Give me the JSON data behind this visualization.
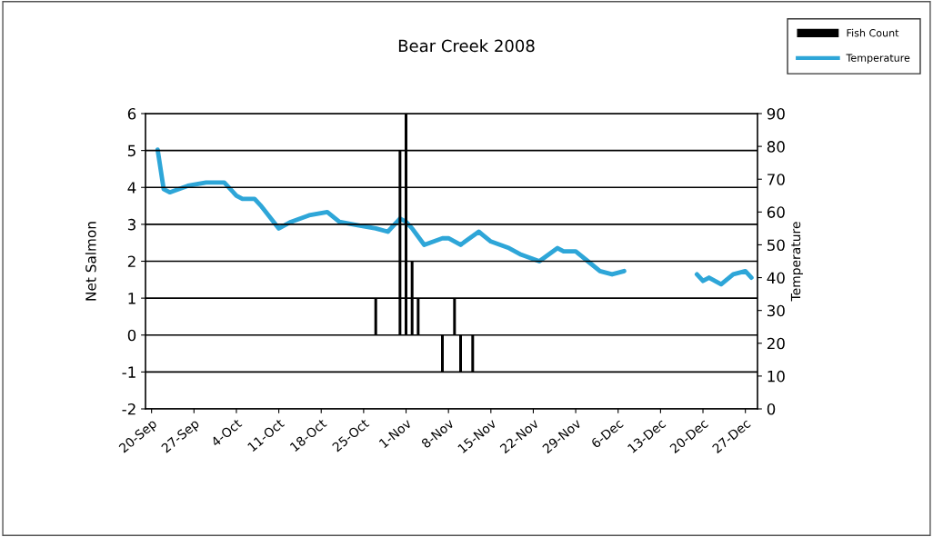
{
  "chart_data": {
    "type": "bar",
    "title": "Bear Creek 2008",
    "ylabel": "Net Salmon",
    "y2label": "Temperature",
    "xlim": [
      "2008-09-19",
      "2008-12-29"
    ],
    "xticks": [
      {
        "value": "2008-09-20",
        "label": "20-Sep"
      },
      {
        "value": "2008-09-27",
        "label": "27-Sep"
      },
      {
        "value": "2008-10-04",
        "label": "4-Oct"
      },
      {
        "value": "2008-10-11",
        "label": "11-Oct"
      },
      {
        "value": "2008-10-18",
        "label": "18-Oct"
      },
      {
        "value": "2008-10-25",
        "label": "25-Oct"
      },
      {
        "value": "2008-11-01",
        "label": "1-Nov"
      },
      {
        "value": "2008-11-08",
        "label": "8-Nov"
      },
      {
        "value": "2008-11-15",
        "label": "15-Nov"
      },
      {
        "value": "2008-11-22",
        "label": "22-Nov"
      },
      {
        "value": "2008-11-29",
        "label": "29-Nov"
      },
      {
        "value": "2008-12-06",
        "label": "6-Dec"
      },
      {
        "value": "2008-12-13",
        "label": "13-Dec"
      },
      {
        "value": "2008-12-20",
        "label": "20-Dec"
      },
      {
        "value": "2008-12-27",
        "label": "27-Dec"
      }
    ],
    "ylim": [
      -2,
      6
    ],
    "yticks": [
      -2,
      -1,
      0,
      1,
      2,
      3,
      4,
      5,
      6
    ],
    "y2lim": [
      0,
      90
    ],
    "y2ticks": [
      0,
      10,
      20,
      30,
      40,
      50,
      60,
      70,
      80,
      90
    ],
    "grid": "y",
    "legend": "top right",
    "series": [
      {
        "name": "Fish Count",
        "color": "#000000",
        "x": [
          "2008-10-27",
          "2008-10-31",
          "2008-11-01",
          "2008-11-02",
          "2008-11-03",
          "2008-11-07",
          "2008-11-09",
          "2008-11-10",
          "2008-11-12"
        ],
        "values": [
          1,
          5,
          6,
          2,
          1,
          -1,
          1,
          -1,
          -1
        ]
      },
      {
        "name": "Temperature",
        "type": "line",
        "axis": "y2",
        "color": "#2ea6d8",
        "x": [
          "2008-09-21",
          "2008-09-22",
          "2008-09-23",
          "2008-09-26",
          "2008-09-29",
          "2008-10-02",
          "2008-10-04",
          "2008-10-05",
          "2008-10-07",
          "2008-10-08",
          "2008-10-11",
          "2008-10-13",
          "2008-10-16",
          "2008-10-19",
          "2008-10-21",
          "2008-10-24",
          "2008-10-27",
          "2008-10-29",
          "2008-10-31",
          "2008-11-01",
          "2008-11-02",
          "2008-11-04",
          "2008-11-07",
          "2008-11-08",
          "2008-11-10",
          "2008-11-13",
          "2008-11-15",
          "2008-11-18",
          "2008-11-20",
          "2008-11-23",
          "2008-11-26",
          "2008-11-27",
          "2008-11-29",
          "2008-12-01",
          "2008-12-03",
          "2008-12-05",
          "2008-12-07",
          "2008-12-13",
          "2008-12-19",
          "2008-12-20",
          "2008-12-21",
          "2008-12-23",
          "2008-12-25",
          "2008-12-27",
          "2008-12-28"
        ],
        "values": [
          79,
          67,
          66,
          68,
          69,
          69,
          65,
          64,
          64,
          62,
          55,
          57,
          59,
          60,
          57,
          56,
          55,
          54,
          58,
          57,
          55,
          50,
          52,
          52,
          50,
          54,
          51,
          49,
          47,
          45,
          49,
          48,
          48,
          45,
          42,
          41,
          42,
          null,
          41,
          39,
          40,
          38,
          41,
          42,
          40
        ]
      }
    ]
  }
}
